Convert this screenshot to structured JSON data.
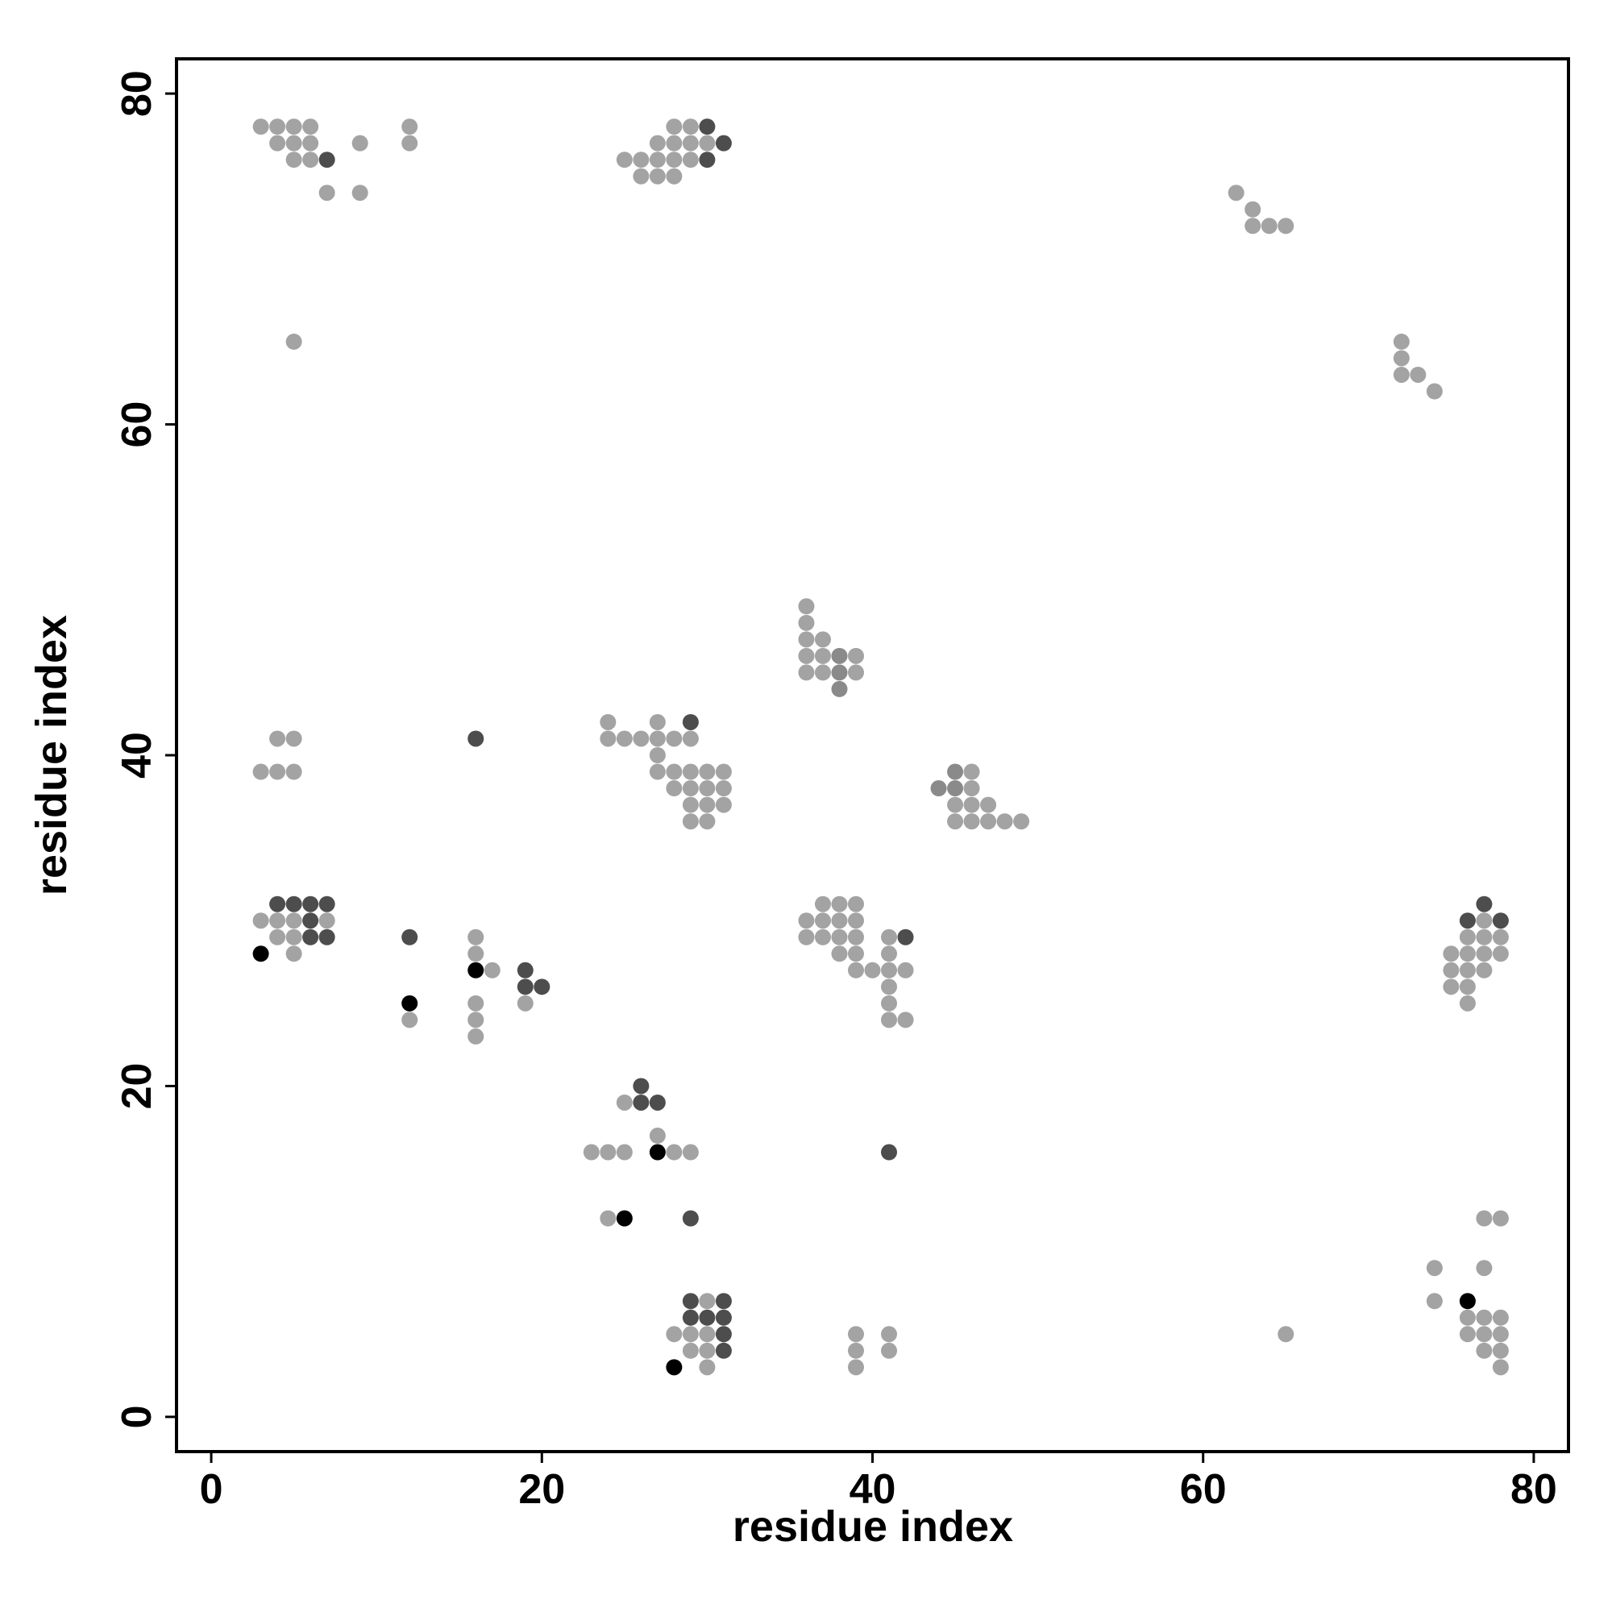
{
  "chart_data": {
    "type": "scatter",
    "x_label": "residue index",
    "y_label": "residue index",
    "xlim": [
      -2.1,
      82.1
    ],
    "ylim": [
      -2.1,
      82.1
    ],
    "xticks": [
      0,
      20,
      40,
      60,
      80
    ],
    "yticks": [
      0,
      20,
      40,
      60,
      80
    ],
    "series": [
      {
        "color": "#a3a3a3",
        "x": [
          3,
          4,
          5,
          6,
          12,
          28,
          29,
          4,
          5,
          6,
          9,
          12,
          27,
          28,
          29,
          30,
          5,
          6,
          25,
          26,
          27,
          28,
          29,
          26,
          27,
          28,
          7,
          9,
          62,
          63,
          63,
          64,
          65,
          5,
          72,
          72,
          72,
          73,
          74,
          36,
          36,
          36,
          37,
          36,
          37,
          39,
          36,
          37,
          39,
          24,
          27,
          4,
          5,
          24,
          25,
          26,
          27,
          28,
          29,
          27,
          3,
          4,
          5,
          27,
          28,
          29,
          30,
          31,
          46,
          28,
          29,
          30,
          31,
          46,
          29,
          30,
          31,
          45,
          46,
          47,
          29,
          30,
          45,
          46,
          47,
          48,
          49,
          37,
          38,
          39,
          3,
          4,
          5,
          7,
          36,
          37,
          38,
          39,
          77,
          4,
          5,
          16,
          36,
          37,
          38,
          39,
          41,
          76,
          77,
          78,
          5,
          16,
          38,
          39,
          41,
          75,
          76,
          77,
          78,
          17,
          39,
          40,
          41,
          42,
          75,
          76,
          77,
          41,
          75,
          76,
          16,
          19,
          41,
          76,
          12,
          16,
          41,
          42,
          16,
          25,
          27,
          23,
          24,
          25,
          28,
          29,
          24,
          77,
          78,
          74,
          77,
          30,
          74,
          76,
          77,
          78,
          28,
          29,
          30,
          39,
          41,
          65,
          76,
          77,
          78,
          29,
          30,
          39,
          41,
          77,
          78,
          30,
          39,
          78
        ],
        "values": [
          78,
          78,
          78,
          78,
          78,
          78,
          78,
          77,
          77,
          77,
          77,
          77,
          77,
          77,
          77,
          77,
          76,
          76,
          76,
          76,
          76,
          76,
          76,
          75,
          75,
          75,
          74,
          74,
          74,
          73,
          72,
          72,
          72,
          65,
          65,
          64,
          63,
          63,
          62,
          49,
          48,
          47,
          47,
          46,
          46,
          46,
          45,
          45,
          45,
          42,
          42,
          41,
          41,
          41,
          41,
          41,
          41,
          41,
          41,
          40,
          39,
          39,
          39,
          39,
          39,
          39,
          39,
          39,
          39,
          38,
          38,
          38,
          38,
          38,
          37,
          37,
          37,
          37,
          37,
          37,
          36,
          36,
          36,
          36,
          36,
          36,
          36,
          31,
          31,
          31,
          30,
          30,
          30,
          30,
          30,
          30,
          30,
          30,
          30,
          29,
          29,
          29,
          29,
          29,
          29,
          29,
          29,
          29,
          29,
          29,
          28,
          28,
          28,
          28,
          28,
          28,
          28,
          28,
          28,
          27,
          27,
          27,
          27,
          27,
          27,
          27,
          27,
          26,
          26,
          26,
          25,
          25,
          25,
          25,
          24,
          24,
          24,
          24,
          23,
          19,
          17,
          16,
          16,
          16,
          16,
          16,
          12,
          12,
          12,
          9,
          9,
          7,
          7,
          6,
          6,
          6,
          5,
          5,
          5,
          5,
          5,
          5,
          5,
          5,
          5,
          4,
          4,
          4,
          4,
          4,
          4,
          3,
          3,
          3
        ]
      },
      {
        "color": "#8a8a8a",
        "x": [
          38,
          38,
          38,
          45,
          44,
          45
        ],
        "values": [
          46,
          45,
          44,
          39,
          38,
          38
        ]
      },
      {
        "color": "#4d4d4d",
        "x": [
          30,
          31,
          7,
          30,
          29,
          16,
          4,
          5,
          6,
          7,
          77,
          6,
          76,
          78,
          6,
          7,
          12,
          42,
          19,
          19,
          20,
          26,
          26,
          27,
          41,
          29,
          29,
          31,
          29,
          30,
          31,
          31,
          31
        ],
        "values": [
          78,
          77,
          76,
          76,
          42,
          41,
          31,
          31,
          31,
          31,
          31,
          30,
          30,
          30,
          29,
          29,
          29,
          29,
          27,
          26,
          26,
          20,
          19,
          19,
          16,
          12,
          7,
          7,
          6,
          6,
          6,
          5,
          4
        ]
      },
      {
        "color": "#000000",
        "x": [
          28,
          25,
          27,
          12,
          16,
          3,
          76
        ],
        "values": [
          3,
          12,
          16,
          25,
          27,
          28,
          7
        ]
      }
    ]
  }
}
